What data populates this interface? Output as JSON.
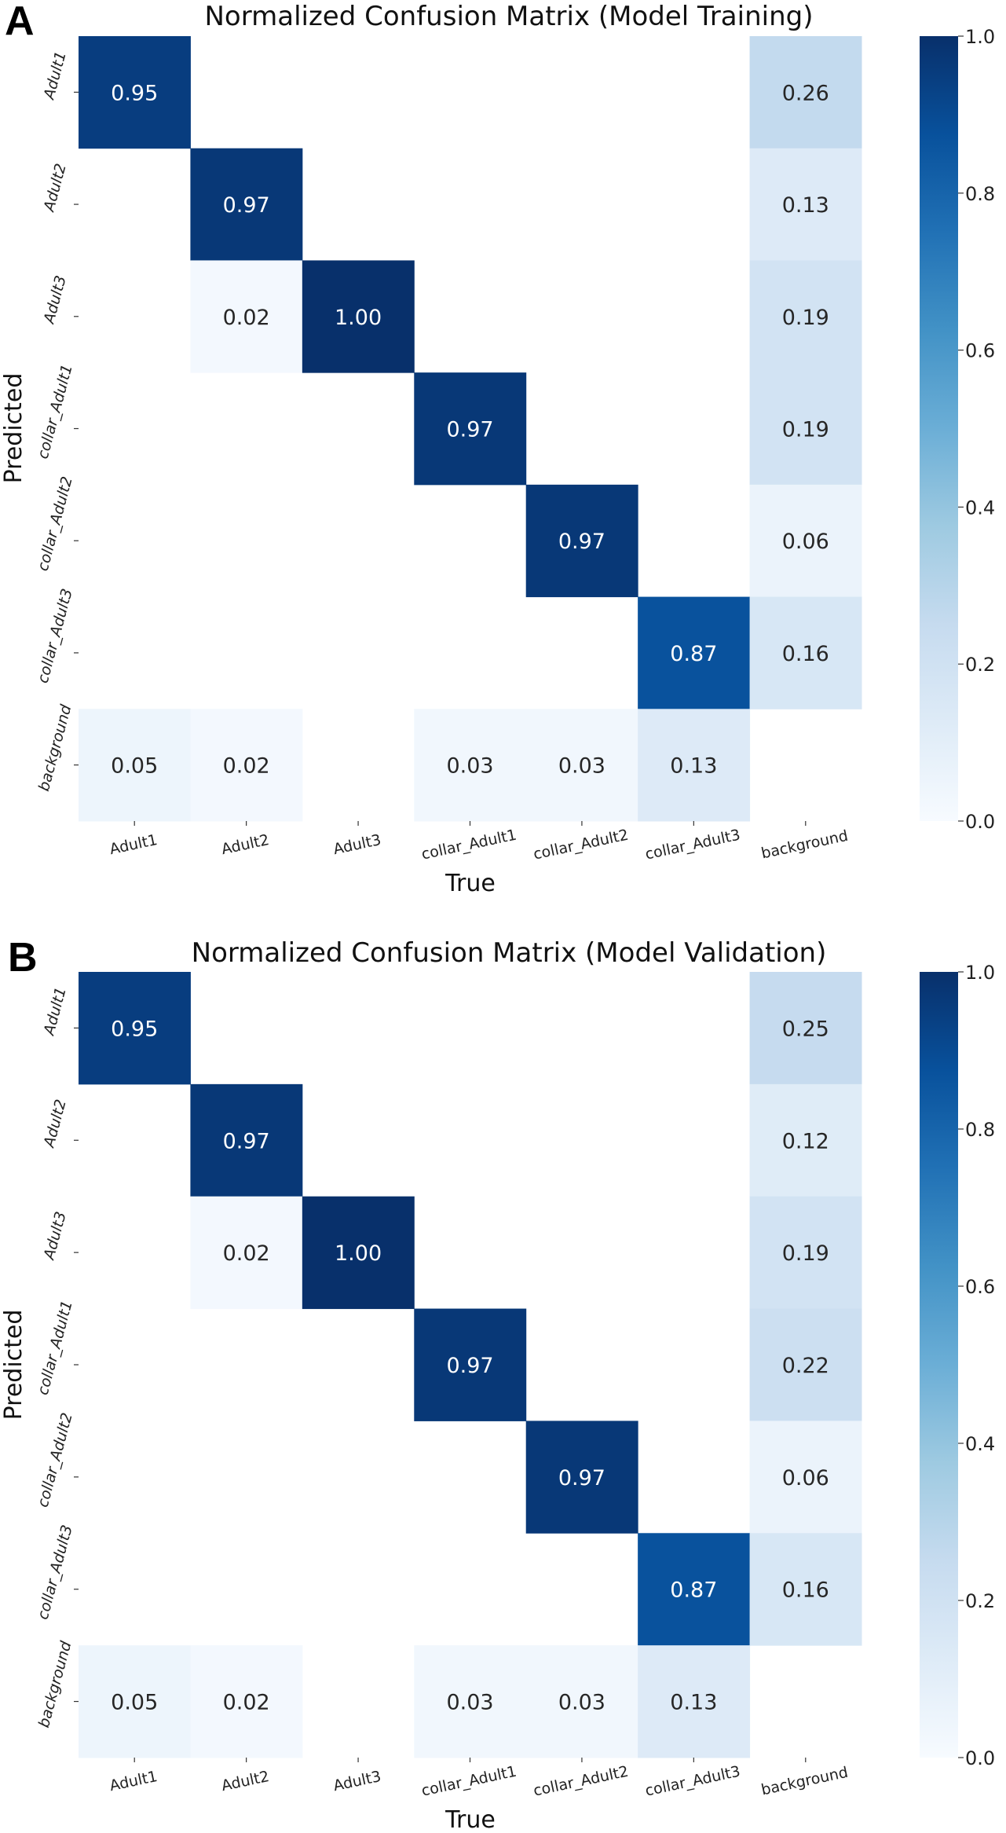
{
  "chart_data": [
    {
      "type": "heatmap",
      "panel_label": "A",
      "title": "Normalized Confusion Matrix (Model Training)",
      "xlabel": "True",
      "ylabel": "Predicted",
      "x_categories": [
        "Adult1",
        "Adult2",
        "Adult3",
        "collar_Adult1",
        "collar_Adult2",
        "collar_Adult3",
        "background"
      ],
      "y_categories": [
        "Adult1",
        "Adult2",
        "Adult3",
        "collar_Adult1",
        "collar_Adult2",
        "collar_Adult3",
        "background"
      ],
      "values": [
        [
          0.95,
          null,
          null,
          null,
          null,
          null,
          0.26
        ],
        [
          null,
          0.97,
          null,
          null,
          null,
          null,
          0.13
        ],
        [
          null,
          0.02,
          1.0,
          null,
          null,
          null,
          0.19
        ],
        [
          null,
          null,
          null,
          0.97,
          null,
          null,
          0.19
        ],
        [
          null,
          null,
          null,
          null,
          0.97,
          null,
          0.06
        ],
        [
          null,
          null,
          null,
          null,
          null,
          0.87,
          0.16
        ],
        [
          0.05,
          0.02,
          null,
          0.03,
          0.03,
          0.13,
          null
        ]
      ],
      "colormap": "Blues",
      "vmin": 0.0,
      "vmax": 1.0,
      "colorbar_ticks": [
        "0.0",
        "0.2",
        "0.4",
        "0.6",
        "0.8",
        "1.0"
      ],
      "colorbar_position": "right"
    },
    {
      "type": "heatmap",
      "panel_label": "B",
      "title": "Normalized Confusion Matrix (Model Validation)",
      "xlabel": "True",
      "ylabel": "Predicted",
      "x_categories": [
        "Adult1",
        "Adult2",
        "Adult3",
        "collar_Adult1",
        "collar_Adult2",
        "collar_Adult3",
        "background"
      ],
      "y_categories": [
        "Adult1",
        "Adult2",
        "Adult3",
        "collar_Adult1",
        "collar_Adult2",
        "collar_Adult3",
        "background"
      ],
      "values": [
        [
          0.95,
          null,
          null,
          null,
          null,
          null,
          0.25
        ],
        [
          null,
          0.97,
          null,
          null,
          null,
          null,
          0.12
        ],
        [
          null,
          0.02,
          1.0,
          null,
          null,
          null,
          0.19
        ],
        [
          null,
          null,
          null,
          0.97,
          null,
          null,
          0.22
        ],
        [
          null,
          null,
          null,
          null,
          0.97,
          null,
          0.06
        ],
        [
          null,
          null,
          null,
          null,
          null,
          0.87,
          0.16
        ],
        [
          0.05,
          0.02,
          null,
          0.03,
          0.03,
          0.13,
          null
        ]
      ],
      "colormap": "Blues",
      "vmin": 0.0,
      "vmax": 1.0,
      "colorbar_ticks": [
        "0.0",
        "0.2",
        "0.4",
        "0.6",
        "0.8",
        "1.0"
      ],
      "colorbar_position": "right"
    }
  ],
  "colors": {
    "blues_stops": [
      "#f7fbff",
      "#deebf7",
      "#c6dbef",
      "#9ecae1",
      "#6baed6",
      "#4292c6",
      "#2171b5",
      "#08519c",
      "#08306b"
    ],
    "text_dark": "#262626",
    "text_light": "#ffffff"
  }
}
